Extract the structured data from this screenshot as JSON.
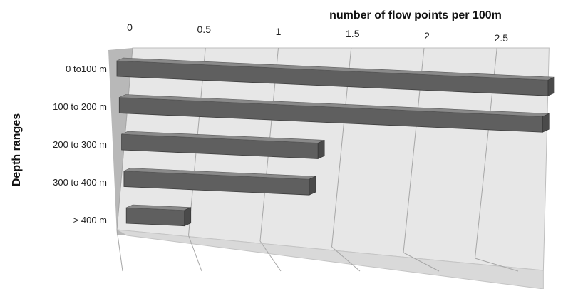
{
  "chart_data": {
    "type": "bar",
    "orientation": "horizontal",
    "three_d": true,
    "title": "",
    "xlabel": "number of flow points per 100m",
    "ylabel": "Depth ranges",
    "xlim": [
      0,
      2.75
    ],
    "x_ticks": [
      "0",
      "0.5",
      "1",
      "1.5",
      "2",
      "2.5"
    ],
    "x_tick_values": [
      0,
      0.5,
      1,
      1.5,
      2,
      2.5
    ],
    "x_axis_position": "top",
    "categories": [
      "0 to100 m",
      "100 to 200 m",
      "200 to 300 m",
      "300 to 400 m",
      "> 400 m"
    ],
    "values": [
      2.75,
      2.75,
      1.3,
      1.25,
      0.4
    ],
    "grid": true,
    "legend": "none",
    "colors": {
      "bar_front": "#5f5f5f",
      "bar_top": "#8a8a8a",
      "bar_side": "#4a4a4a",
      "wall": "#e7e7e7",
      "floor": "#d9d9d9",
      "side_wall": "#b8b8b8",
      "gridline": "#a6a6a6"
    }
  }
}
